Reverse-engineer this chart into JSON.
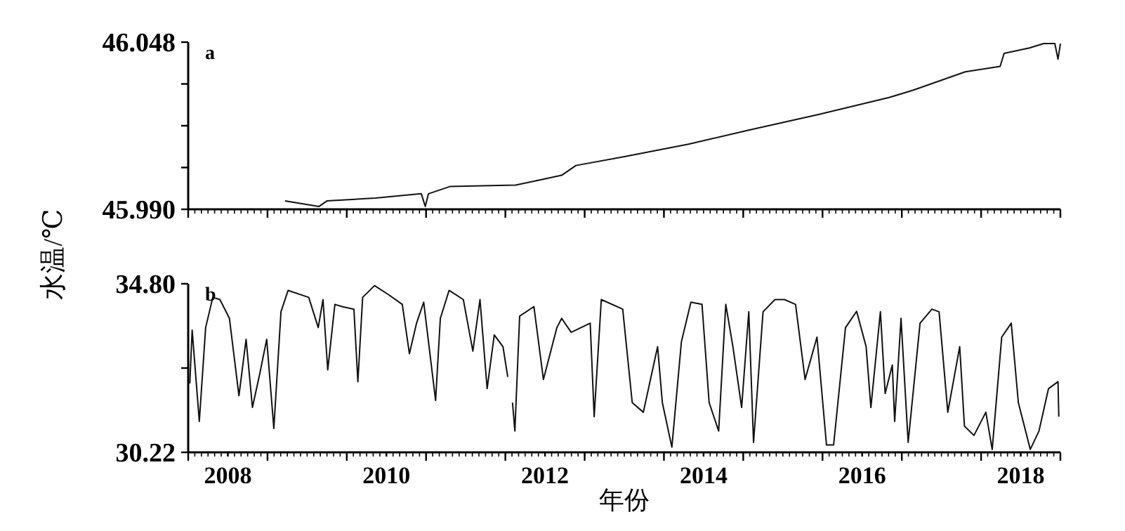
{
  "chart_data": [
    {
      "type": "line",
      "annotations": [
        "a"
      ],
      "tick_labels": "y",
      "grid": false,
      "marker": "none",
      "line_style": "solid",
      "xlim": [
        2007.5,
        2018.5
      ],
      "xticks": [
        {
          "value": 2007.5,
          "label": null
        },
        {
          "value": 2008.5,
          "label": null
        },
        {
          "value": 2009.5,
          "label": null
        },
        {
          "value": 2010.5,
          "label": null
        },
        {
          "value": 2011.5,
          "label": null
        },
        {
          "value": 2012.5,
          "label": null
        },
        {
          "value": 2013.5,
          "label": null
        },
        {
          "value": 2014.5,
          "label": null
        },
        {
          "value": 2015.5,
          "label": null
        },
        {
          "value": 2016.5,
          "label": null
        },
        {
          "value": 2017.5,
          "label": null
        },
        {
          "value": 2018.5,
          "label": null
        }
      ],
      "ylim": [
        45.99,
        46.048
      ],
      "yticks": [
        {
          "value": 45.99,
          "label": "45.990"
        },
        {
          "value": 46.0045,
          "label": null
        },
        {
          "value": 46.019,
          "label": null
        },
        {
          "value": 46.0335,
          "label": null
        },
        {
          "value": 46.048,
          "label": "46.048"
        }
      ],
      "series": [
        {
          "color": "#111111",
          "x": [
            2008.72,
            2009.15,
            2009.25,
            2009.86,
            2010.44,
            2010.49,
            2010.53,
            2010.8,
            2011.63,
            2012.21,
            2012.39,
            2012.99,
            2013.81,
            2014.57,
            2015.45,
            2016.34,
            2016.64,
            2017.3,
            2017.74,
            2017.79,
            2018.11,
            2018.29,
            2018.43,
            2018.47,
            2018.5
          ],
          "values": [
            45.9929,
            45.991,
            45.9929,
            45.9939,
            45.9954,
            45.991,
            45.9954,
            45.9979,
            45.9984,
            46.0018,
            46.0052,
            46.0082,
            46.0126,
            46.0175,
            46.0229,
            46.0288,
            46.0313,
            46.0377,
            46.0396,
            46.0441,
            46.046,
            46.0475,
            46.0475,
            46.0421,
            46.0475
          ]
        }
      ]
    },
    {
      "type": "line",
      "annotations": [
        "b"
      ],
      "ylabel": "水温/℃",
      "xlabel": "年份",
      "grid": false,
      "marker": "none",
      "line_style": "solid",
      "xlim": [
        2007.5,
        2018.5
      ],
      "xticks": [
        {
          "value": 2007.5,
          "label": null
        },
        {
          "value": 2008,
          "label": "2008"
        },
        {
          "value": 2008.5,
          "label": null
        },
        {
          "value": 2009.5,
          "label": null
        },
        {
          "value": 2010,
          "label": "2010"
        },
        {
          "value": 2010.5,
          "label": null
        },
        {
          "value": 2011.5,
          "label": null
        },
        {
          "value": 2012,
          "label": "2012"
        },
        {
          "value": 2012.5,
          "label": null
        },
        {
          "value": 2013.5,
          "label": null
        },
        {
          "value": 2014,
          "label": "2014"
        },
        {
          "value": 2014.5,
          "label": null
        },
        {
          "value": 2015.5,
          "label": null
        },
        {
          "value": 2016,
          "label": "2016"
        },
        {
          "value": 2016.5,
          "label": null
        },
        {
          "value": 2017.5,
          "label": null
        },
        {
          "value": 2018,
          "label": "2018"
        },
        {
          "value": 2018.5,
          "label": null
        }
      ],
      "ylim": [
        30.22,
        34.8
      ],
      "yticks": [
        {
          "value": 30.22,
          "label": "30.22"
        },
        {
          "value": 32.51,
          "label": null
        },
        {
          "value": 34.8,
          "label": "34.80"
        }
      ],
      "series": [
        {
          "color": "#111111",
          "x": [
            2007.52,
            2007.55,
            2007.64,
            2007.72,
            2007.81,
            2007.9,
            2008.02,
            2008.14,
            2008.23,
            2008.31,
            2008.4,
            2008.49,
            2008.58,
            2008.67,
            2008.76,
            2009.02,
            2009.14,
            2009.2,
            2009.26,
            2009.35,
            2009.44,
            2009.59,
            2009.64,
            2009.7,
            2009.85,
            2010.03,
            2010.2,
            2010.29,
            2010.38,
            2010.47,
            2010.62,
            2010.68,
            2010.79,
            2010.97,
            2011.09,
            2011.18,
            2011.27,
            2011.36,
            2011.47,
            2011.53,
            2011.56,
            2011.59,
            2011.62,
            2011.68,
            2011.86,
            2011.98,
            2012.15,
            2012.21,
            2012.33,
            2012.57,
            2012.62,
            2012.71,
            2012.98,
            2013.1,
            2013.24,
            2013.42,
            2013.48,
            2013.6,
            2013.72,
            2013.84,
            2013.98,
            2014.07,
            2014.19,
            2014.28,
            2014.37,
            2014.48,
            2014.57,
            2014.63,
            2014.75,
            2014.9,
            2015.02,
            2015.16,
            2015.28,
            2015.43,
            2015.55,
            2015.64,
            2015.79,
            2015.93,
            2016.05,
            2016.11,
            2016.23,
            2016.29,
            2016.38,
            2016.41,
            2016.49,
            2016.58,
            2016.73,
            2016.88,
            2016.97,
            2017.08,
            2017.23,
            2017.29,
            2017.41,
            2017.56,
            2017.64,
            2017.76,
            2017.88,
            2017.97,
            2018.12,
            2018.23,
            2018.35,
            2018.47,
            2018.48
          ],
          "values": [
            32.09,
            33.54,
            31.06,
            33.61,
            34.43,
            34.37,
            33.86,
            31.76,
            33.29,
            31.44,
            32.33,
            33.29,
            30.87,
            34.04,
            34.62,
            34.43,
            33.61,
            34.37,
            32.46,
            34.24,
            34.18,
            34.11,
            32.14,
            34.43,
            34.75,
            34.5,
            34.24,
            32.9,
            33.73,
            34.3,
            31.63,
            33.86,
            34.62,
            34.37,
            32.97,
            34.37,
            31.95,
            33.41,
            33.09,
            32.27,
            null,
            31.57,
            30.8,
            33.92,
            34.18,
            32.2,
            33.61,
            33.86,
            33.48,
            33.73,
            31.19,
            34.37,
            34.11,
            31.57,
            31.31,
            33.09,
            31.57,
            30.36,
            33.22,
            34.3,
            34.24,
            31.57,
            30.8,
            34.24,
            33.09,
            31.44,
            34.04,
            30.49,
            34.04,
            34.37,
            34.37,
            34.24,
            32.2,
            33.35,
            30.42,
            30.42,
            33.61,
            34.05,
            33.09,
            31.44,
            34.04,
            31.82,
            32.59,
            31.06,
            33.86,
            30.49,
            33.73,
            34.11,
            34.04,
            31.31,
            33.09,
            30.93,
            30.68,
            31.31,
            30.3,
            33.35,
            33.73,
            31.57,
            30.3,
            30.8,
            31.95,
            32.14,
            31.19
          ]
        }
      ]
    }
  ]
}
